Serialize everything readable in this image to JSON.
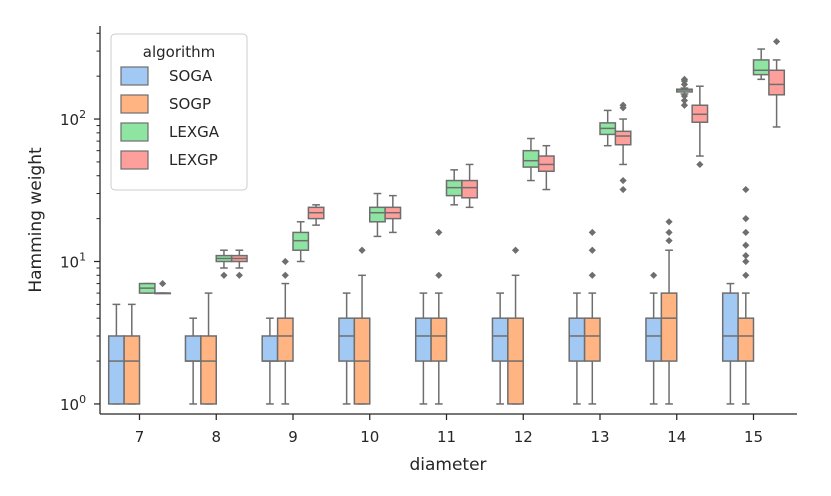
{
  "chart_data": {
    "type": "box",
    "title": "",
    "xlabel": "diameter",
    "ylabel": "Hamming weight",
    "yscale": "log",
    "ylim": [
      0.85,
      450
    ],
    "yticks": [
      {
        "value": 1,
        "base": "10",
        "exp": "0"
      },
      {
        "value": 10,
        "base": "10",
        "exp": "1"
      },
      {
        "value": 100,
        "base": "10",
        "exp": "2"
      }
    ],
    "categories": [
      "7",
      "8",
      "9",
      "10",
      "11",
      "12",
      "13",
      "14",
      "15"
    ],
    "legend": {
      "title": "algorithm",
      "position": "top-left"
    },
    "series": [
      {
        "name": "SOGA",
        "color": "#a1c9f4",
        "boxes": [
          {
            "min": 1,
            "q1": 1,
            "median": 2,
            "q3": 3,
            "max": 5,
            "fliers": []
          },
          {
            "min": 1,
            "q1": 2,
            "median": 2,
            "q3": 3,
            "max": 4,
            "fliers": []
          },
          {
            "min": 1,
            "q1": 2,
            "median": 2,
            "q3": 3,
            "max": 4,
            "fliers": []
          },
          {
            "min": 1,
            "q1": 2,
            "median": 3,
            "q3": 4,
            "max": 6,
            "fliers": []
          },
          {
            "min": 1,
            "q1": 2,
            "median": 3,
            "q3": 4,
            "max": 6,
            "fliers": []
          },
          {
            "min": 1,
            "q1": 2,
            "median": 3,
            "q3": 4,
            "max": 6,
            "fliers": []
          },
          {
            "min": 1,
            "q1": 2,
            "median": 3,
            "q3": 4,
            "max": 6,
            "fliers": []
          },
          {
            "min": 1,
            "q1": 2,
            "median": 3,
            "q3": 4,
            "max": 6,
            "fliers": [
              8
            ]
          },
          {
            "min": 1,
            "q1": 2,
            "median": 3,
            "q3": 6,
            "max": 7,
            "fliers": []
          }
        ]
      },
      {
        "name": "SOGP",
        "color": "#ffb482",
        "boxes": [
          {
            "min": 1,
            "q1": 1,
            "median": 2,
            "q3": 3,
            "max": 5,
            "fliers": []
          },
          {
            "min": 1,
            "q1": 1,
            "median": 2,
            "q3": 3,
            "max": 6,
            "fliers": []
          },
          {
            "min": 1,
            "q1": 2,
            "median": 3,
            "q3": 4,
            "max": 7,
            "fliers": [
              8,
              10
            ]
          },
          {
            "min": 1,
            "q1": 1,
            "median": 2,
            "q3": 4,
            "max": 8,
            "fliers": [
              12
            ]
          },
          {
            "min": 1,
            "q1": 2,
            "median": 3,
            "q3": 4,
            "max": 6,
            "fliers": [
              8,
              16
            ]
          },
          {
            "min": 1,
            "q1": 1,
            "median": 2,
            "q3": 4,
            "max": 8,
            "fliers": [
              12
            ]
          },
          {
            "min": 1,
            "q1": 2,
            "median": 3,
            "q3": 4,
            "max": 6,
            "fliers": [
              8,
              12,
              16
            ]
          },
          {
            "min": 1,
            "q1": 2,
            "median": 4,
            "q3": 6,
            "max": 12,
            "fliers": [
              14,
              16,
              19
            ]
          },
          {
            "min": 1,
            "q1": 2,
            "median": 3,
            "q3": 4,
            "max": 6,
            "fliers": [
              8,
              10,
              11,
              13,
              16,
              20,
              32
            ]
          }
        ]
      },
      {
        "name": "LEXGA",
        "color": "#8de5a1",
        "boxes": [
          {
            "min": 6,
            "q1": 6,
            "median": 6.5,
            "q3": 7,
            "max": 7,
            "fliers": []
          },
          {
            "min": 9,
            "q1": 10,
            "median": 10.5,
            "q3": 11,
            "max": 12,
            "fliers": [
              8
            ]
          },
          {
            "min": 10,
            "q1": 12,
            "median": 14,
            "q3": 16,
            "max": 19,
            "fliers": []
          },
          {
            "min": 15,
            "q1": 19,
            "median": 22,
            "q3": 24,
            "max": 30,
            "fliers": []
          },
          {
            "min": 25,
            "q1": 29,
            "median": 33,
            "q3": 37,
            "max": 44,
            "fliers": []
          },
          {
            "min": 37,
            "q1": 46,
            "median": 51,
            "q3": 60,
            "max": 73,
            "fliers": []
          },
          {
            "min": 65,
            "q1": 78,
            "median": 86,
            "q3": 94,
            "max": 115,
            "fliers": []
          },
          {
            "min": 150,
            "q1": 155,
            "median": 160,
            "q3": 162,
            "max": 165,
            "fliers": [
              125,
              135,
              145,
              175,
              185,
              190
            ]
          },
          {
            "min": 190,
            "q1": 205,
            "median": 220,
            "q3": 260,
            "max": 310,
            "fliers": []
          }
        ]
      },
      {
        "name": "LEXGP",
        "color": "#ff9f9b",
        "boxes": [
          {
            "min": 6,
            "q1": 6,
            "median": 6,
            "q3": 6,
            "max": 6,
            "fliers": [
              7
            ]
          },
          {
            "min": 9,
            "q1": 10,
            "median": 10.5,
            "q3": 11,
            "max": 12,
            "fliers": [
              8
            ]
          },
          {
            "min": 18,
            "q1": 20,
            "median": 22,
            "q3": 24,
            "max": 25,
            "fliers": []
          },
          {
            "min": 16,
            "q1": 20,
            "median": 22,
            "q3": 24,
            "max": 29,
            "fliers": []
          },
          {
            "min": 24,
            "q1": 28,
            "median": 33,
            "q3": 37,
            "max": 48,
            "fliers": []
          },
          {
            "min": 32,
            "q1": 43,
            "median": 48,
            "q3": 55,
            "max": 65,
            "fliers": []
          },
          {
            "min": 48,
            "q1": 66,
            "median": 76,
            "q3": 82,
            "max": 100,
            "fliers": [
              32,
              37,
              120,
              125
            ]
          },
          {
            "min": 55,
            "q1": 95,
            "median": 108,
            "q3": 125,
            "max": 170,
            "fliers": [
              48
            ]
          },
          {
            "min": 88,
            "q1": 148,
            "median": 175,
            "q3": 220,
            "max": 260,
            "fliers": [
              350
            ]
          }
        ]
      }
    ]
  }
}
